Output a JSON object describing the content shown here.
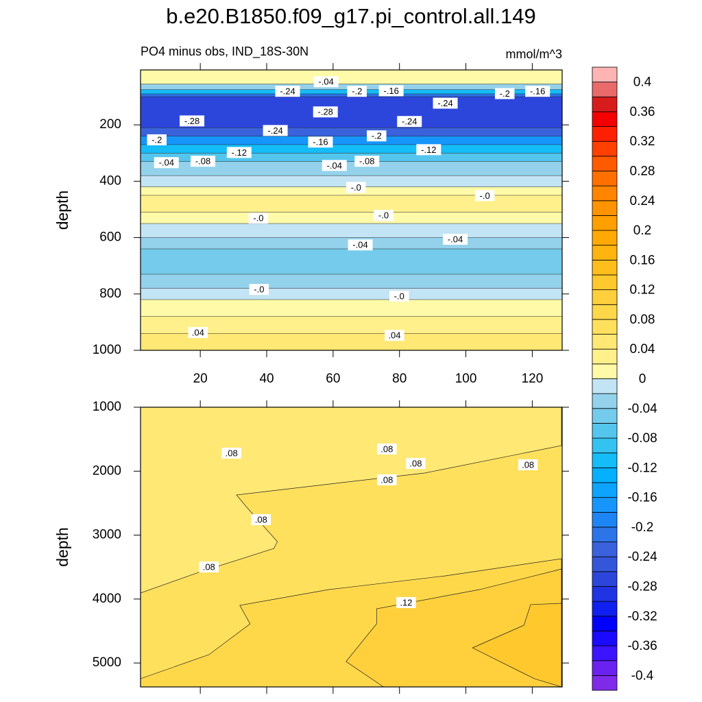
{
  "chart_data": [
    {
      "type": "contour",
      "title": "b.e20.B1850.f09_g17.pi_control.all.149",
      "subtitle": "PO4 minus obs, IND_18S-30N",
      "units": "mmol/m^3",
      "y_label": "depth",
      "xlim": [
        2,
        129
      ],
      "xticks": [
        20,
        40,
        60,
        80,
        100,
        120
      ],
      "xtick_labels": true,
      "ylim": [
        5,
        1000
      ],
      "y_reversed": true,
      "yticks": [
        200,
        400,
        600,
        800,
        1000
      ],
      "bands": [
        {
          "from": 5,
          "to": 55,
          "value": 0.01
        },
        {
          "from": 55,
          "to": 75,
          "value": -0.03
        },
        {
          "from": 75,
          "to": 90,
          "value": -0.11
        },
        {
          "from": 90,
          "to": 100,
          "value": -0.21
        },
        {
          "from": 100,
          "to": 210,
          "value": -0.27
        },
        {
          "from": 210,
          "to": 240,
          "value": -0.23
        },
        {
          "from": 240,
          "to": 270,
          "value": -0.17
        },
        {
          "from": 270,
          "to": 300,
          "value": -0.11
        },
        {
          "from": 300,
          "to": 330,
          "value": -0.07
        },
        {
          "from": 330,
          "to": 380,
          "value": -0.03
        },
        {
          "from": 380,
          "to": 420,
          "value": -0.01
        },
        {
          "from": 420,
          "to": 450,
          "value": 0.01
        },
        {
          "from": 450,
          "to": 510,
          "value": 0.03
        },
        {
          "from": 510,
          "to": 550,
          "value": 0.01
        },
        {
          "from": 550,
          "to": 600,
          "value": -0.01
        },
        {
          "from": 600,
          "to": 640,
          "value": -0.03
        },
        {
          "from": 640,
          "to": 730,
          "value": -0.05
        },
        {
          "from": 730,
          "to": 780,
          "value": -0.03
        },
        {
          "from": 780,
          "to": 820,
          "value": -0.01
        },
        {
          "from": 820,
          "to": 880,
          "value": 0.01
        },
        {
          "from": 880,
          "to": 940,
          "value": 0.03
        },
        {
          "from": 940,
          "to": 1000,
          "value": 0.05
        }
      ],
      "regions": [],
      "contour_labels": [
        {
          "x": 57.9,
          "y": 47,
          "value": -0.04,
          "label": "-.04"
        },
        {
          "x": 46.3,
          "y": 81,
          "value": -0.24,
          "label": "-.24"
        },
        {
          "x": 67.2,
          "y": 81,
          "value": -0.2,
          "label": "-.2"
        },
        {
          "x": 77.5,
          "y": 79,
          "value": -0.16,
          "label": "-.16"
        },
        {
          "x": 93.8,
          "y": 123,
          "value": -0.24,
          "label": "-.24"
        },
        {
          "x": 111.7,
          "y": 89,
          "value": -0.2,
          "label": "-.2"
        },
        {
          "x": 121.6,
          "y": 81,
          "value": -0.16,
          "label": "-.16"
        },
        {
          "x": 17.5,
          "y": 186,
          "value": -0.28,
          "label": "-.28"
        },
        {
          "x": 57.7,
          "y": 154,
          "value": -0.28,
          "label": "-.28"
        },
        {
          "x": 42.6,
          "y": 220,
          "value": -0.24,
          "label": "-.24"
        },
        {
          "x": 83,
          "y": 188,
          "value": -0.24,
          "label": "-.24"
        },
        {
          "x": 6.9,
          "y": 253,
          "value": -0.2,
          "label": "-.2"
        },
        {
          "x": 56.2,
          "y": 261,
          "value": -0.16,
          "label": "-.16"
        },
        {
          "x": 73.1,
          "y": 239,
          "value": -0.2,
          "label": "-.2"
        },
        {
          "x": 31.7,
          "y": 298,
          "value": -0.12,
          "label": "-.12"
        },
        {
          "x": 88.8,
          "y": 288,
          "value": -0.12,
          "label": "-.12"
        },
        {
          "x": 9.8,
          "y": 334,
          "value": -0.04,
          "label": "-.04"
        },
        {
          "x": 20.8,
          "y": 329,
          "value": -0.08,
          "label": "-.08"
        },
        {
          "x": 60.4,
          "y": 344,
          "value": -0.04,
          "label": "-.04"
        },
        {
          "x": 70.2,
          "y": 329,
          "value": -0.08,
          "label": "-.08"
        },
        {
          "x": 66.9,
          "y": 422,
          "value": 0,
          "label": "-.0"
        },
        {
          "x": 105.7,
          "y": 451,
          "value": 0,
          "label": "-.0"
        },
        {
          "x": 37.5,
          "y": 531,
          "value": 0,
          "label": "-.0"
        },
        {
          "x": 75.2,
          "y": 521,
          "value": 0,
          "label": "-.0"
        },
        {
          "x": 68.2,
          "y": 626,
          "value": -0.04,
          "label": "-.04"
        },
        {
          "x": 96.8,
          "y": 606,
          "value": -0.04,
          "label": "-.04"
        },
        {
          "x": 37.7,
          "y": 784,
          "value": 0,
          "label": "-.0"
        },
        {
          "x": 79.9,
          "y": 808,
          "value": 0,
          "label": "-.0"
        },
        {
          "x": 19.3,
          "y": 937,
          "value": 0.04,
          "label": ".04"
        },
        {
          "x": 78.5,
          "y": 947,
          "value": 0.04,
          "label": ".04"
        }
      ]
    },
    {
      "type": "contour",
      "y_label": "depth",
      "xlim": [
        2,
        129
      ],
      "xticks": [
        20,
        40,
        60,
        80,
        100,
        120
      ],
      "xtick_labels": false,
      "ylim": [
        1000,
        5374
      ],
      "y_reversed": true,
      "yticks": [
        1000,
        2000,
        3000,
        4000,
        5000
      ],
      "bands": [
        {
          "from": 1000,
          "to": 5374,
          "value": 0.07
        }
      ],
      "regions": [
        {
          "value": 0.05,
          "points": [
            [
              2,
              1000
            ],
            [
              128.8,
              1000
            ],
            [
              128.8,
              1600
            ],
            [
              87.6,
              2029
            ],
            [
              60.8,
              2190
            ],
            [
              30.9,
              2372
            ],
            [
              34,
              2565
            ],
            [
              43.2,
              3101
            ],
            [
              42.2,
              3208
            ],
            [
              19.5,
              3583
            ],
            [
              2,
              3905
            ]
          ]
        },
        {
          "value": 0.09,
          "points": [
            [
              2,
              5245
            ],
            [
              22.6,
              4870
            ],
            [
              35,
              4388
            ],
            [
              31.9,
              4098
            ],
            [
              58.7,
              3852
            ],
            [
              93.8,
              3637
            ],
            [
              128.8,
              3369
            ],
            [
              128.8,
              5374
            ],
            [
              2,
              5374
            ]
          ]
        },
        {
          "value": 0.11,
          "points": [
            [
              63.9,
              4977
            ],
            [
              73.1,
              4388
            ],
            [
              73.1,
              4152
            ],
            [
              104.1,
              3852
            ],
            [
              128.8,
              3530
            ],
            [
              128.8,
              5374
            ],
            [
              75.2,
              5374
            ]
          ]
        },
        {
          "value": 0.13,
          "points": [
            [
              102,
              4763
            ],
            [
              117.5,
              4409
            ],
            [
              119.5,
              4087
            ],
            [
              128.8,
              4066
            ],
            [
              128.8,
              5374
            ],
            [
              120.6,
              5245
            ]
          ]
        }
      ],
      "contour_labels": [
        {
          "x": 29.4,
          "y": 1718,
          "value": 0.08,
          "label": ".08"
        },
        {
          "x": 76.2,
          "y": 1654,
          "value": 0.08,
          "label": ".08"
        },
        {
          "x": 84.9,
          "y": 1879,
          "value": 0.08,
          "label": ".08"
        },
        {
          "x": 118.7,
          "y": 1900,
          "value": 0.08,
          "label": ".08"
        },
        {
          "x": 76.2,
          "y": 2136,
          "value": 0.08,
          "label": ".08"
        },
        {
          "x": 38.3,
          "y": 2758,
          "value": 0.08,
          "label": ".08"
        },
        {
          "x": 22.6,
          "y": 3498,
          "value": 0.08,
          "label": ".08"
        },
        {
          "x": 82,
          "y": 4055,
          "value": 0.12,
          "label": ".12"
        }
      ]
    },
    {
      "type": "colorbar",
      "ticks": [
        0.4,
        0.36,
        0.32,
        0.28,
        0.24,
        0.2,
        0.16,
        0.12,
        0.08,
        0.04,
        0,
        -0.04,
        -0.08,
        -0.12,
        -0.16,
        -0.2,
        -0.24,
        -0.28,
        -0.32,
        -0.36,
        -0.4
      ],
      "colors": [
        "#7f2ae8",
        "#6a22f0",
        "#3c14ff",
        "#1a0aff",
        "#0000ff",
        "#1020f0",
        "#2034e4",
        "#2c46dc",
        "#3456d8",
        "#3a62dc",
        "#2c74e8",
        "#1e86f4",
        "#1696fc",
        "#0ca4ff",
        "#04b0ff",
        "#14bcf8",
        "#34c2f0",
        "#54c6ee",
        "#74cbec",
        "#94d2ec",
        "#c2e4f4",
        "#fffaa8",
        "#fff08c",
        "#ffe874",
        "#ffe05c",
        "#ffd84a",
        "#ffd03c",
        "#ffc82c",
        "#ffbe1c",
        "#ffb410",
        "#ffaa04",
        "#ffa000",
        "#ff9400",
        "#ff8400",
        "#ff7000",
        "#ff5a00",
        "#ff4000",
        "#ff2000",
        "#f40000",
        "#d81c1c",
        "#e86a6a",
        "#ffb4b4"
      ]
    }
  ]
}
